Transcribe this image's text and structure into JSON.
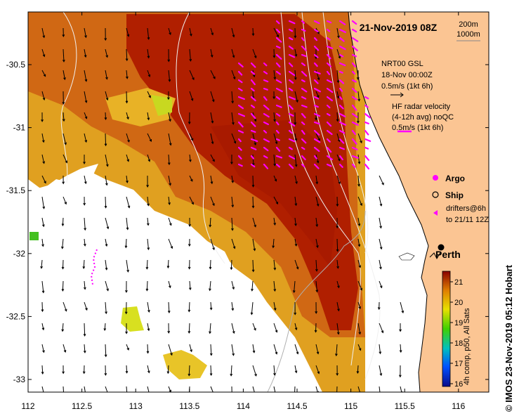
{
  "title": "21-Nov-2019 08Z",
  "scale_labels": [
    "200m",
    "1000m"
  ],
  "model_legend": {
    "line1": "NRT00 GSL",
    "line2": "18-Nov 00:00Z",
    "line3": "0.5m/s (1kt 6h)"
  },
  "radar_legend": {
    "line1": "HF radar velocity",
    "line2": "(4-12h avg) noQC",
    "line3": "0.5m/s (1kt 6h)"
  },
  "symbols": {
    "argo": "Argo",
    "ship": "Ship",
    "drifters_line1": "drifters@6h",
    "drifters_line2": "to 21/11 12Z"
  },
  "places": {
    "perth": "Perth"
  },
  "colorbar": {
    "label": "4h comp, p50, All Sats",
    "ticks": [
      "21",
      "20",
      "19",
      "18",
      "17",
      "16"
    ]
  },
  "credit": "© IMOS 23-Nov-2019 05:12 Hobart",
  "axes": {
    "x_ticks": [
      "112",
      "112.5",
      "113",
      "113.5",
      "114",
      "114.5",
      "115",
      "115.5",
      "116"
    ],
    "y_ticks": [
      "-30.5",
      "-31",
      "-31.5",
      "-32",
      "-32.5",
      "-33"
    ]
  },
  "colors": {
    "land": "#fbc593",
    "sst_hot": "#b41c00",
    "sst_warm": "#d86a10",
    "sst_mid": "#e5a322",
    "radar": "#ff00ff"
  }
}
